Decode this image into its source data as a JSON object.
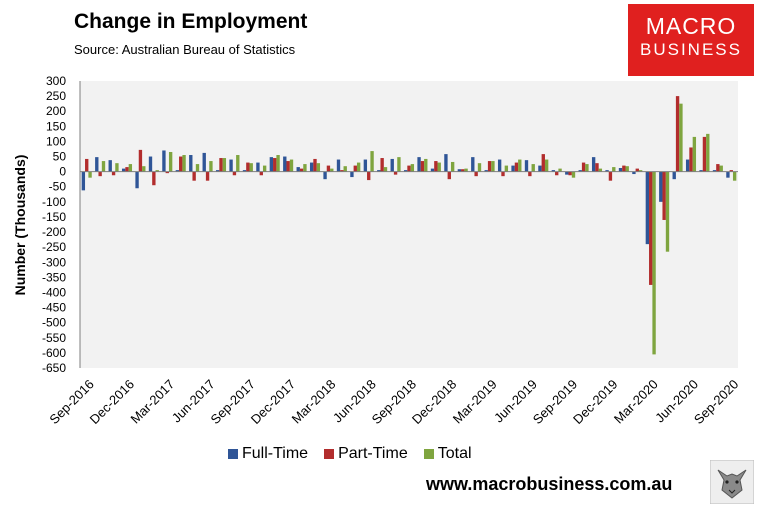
{
  "title": "Change in Employment",
  "source": "Source: Australian Bureau of Statistics",
  "logo": {
    "line1": "MACRO",
    "line2": "BUSINESS"
  },
  "website": "www.macrobusiness.com.au",
  "colors": {
    "full_time": "#2f5597",
    "part_time": "#b22d2d",
    "total": "#7fa53f",
    "plot_bg": "#f2f2f2",
    "brand": "#e0201f"
  },
  "chart_data": {
    "type": "bar",
    "title": "Change in Employment",
    "ylabel": "Number (Thousands)",
    "ylim": [
      -650,
      300
    ],
    "yticks": [
      300,
      250,
      200,
      150,
      100,
      50,
      0,
      -50,
      -100,
      -150,
      -200,
      -250,
      -300,
      -350,
      -400,
      -450,
      -500,
      -550,
      -600,
      -650
    ],
    "grid": false,
    "legend": "bottom",
    "x_tick_labels": [
      "Sep-2016",
      "Dec-2016",
      "Mar-2017",
      "Jun-2017",
      "Sep-2017",
      "Dec-2017",
      "Mar-2018",
      "Jun-2018",
      "Sep-2018",
      "Dec-2018",
      "Mar-2019",
      "Jun-2019",
      "Sep-2019",
      "Dec-2019",
      "Mar-2020",
      "Jun-2020",
      "Sep-2020"
    ],
    "categories": [
      "Sep-2016",
      "Oct-2016",
      "Nov-2016",
      "Dec-2016",
      "Jan-2017",
      "Feb-2017",
      "Mar-2017",
      "Apr-2017",
      "May-2017",
      "Jun-2017",
      "Jul-2017",
      "Aug-2017",
      "Sep-2017",
      "Oct-2017",
      "Nov-2017",
      "Dec-2017",
      "Jan-2018",
      "Feb-2018",
      "Mar-2018",
      "Apr-2018",
      "May-2018",
      "Jun-2018",
      "Jul-2018",
      "Aug-2018",
      "Sep-2018",
      "Oct-2018",
      "Nov-2018",
      "Dec-2018",
      "Jan-2019",
      "Feb-2019",
      "Mar-2019",
      "Apr-2019",
      "May-2019",
      "Jun-2019",
      "Jul-2019",
      "Aug-2019",
      "Sep-2019",
      "Oct-2019",
      "Nov-2019",
      "Dec-2019",
      "Jan-2020",
      "Feb-2020",
      "Mar-2020",
      "Apr-2020",
      "May-2020",
      "Jun-2020",
      "Jul-2020",
      "Aug-2020",
      "Sep-2020"
    ],
    "series": [
      {
        "name": "Full-Time",
        "values": [
          -62,
          48,
          38,
          10,
          -55,
          50,
          70,
          5,
          55,
          62,
          5,
          40,
          5,
          30,
          48,
          50,
          15,
          30,
          -25,
          40,
          -18,
          40,
          5,
          42,
          5,
          48,
          10,
          58,
          8,
          48,
          5,
          40,
          20,
          38,
          20,
          5,
          -10,
          5,
          48,
          5,
          12,
          -8,
          -240,
          -100,
          -25,
          40,
          5,
          5,
          -20
        ]
      },
      {
        "name": "Part-Time",
        "values": [
          42,
          -15,
          -12,
          15,
          72,
          -45,
          -5,
          50,
          -30,
          -30,
          45,
          -12,
          30,
          -12,
          45,
          35,
          10,
          42,
          20,
          5,
          20,
          -28,
          45,
          -10,
          20,
          35,
          35,
          -25,
          8,
          -15,
          35,
          -15,
          30,
          -15,
          58,
          -12,
          -12,
          30,
          28,
          -30,
          20,
          10,
          -375,
          -160,
          250,
          80,
          115,
          25,
          5
        ]
      },
      {
        "name": "Total",
        "values": [
          -20,
          35,
          28,
          25,
          18,
          5,
          65,
          55,
          25,
          35,
          45,
          55,
          28,
          20,
          55,
          40,
          25,
          28,
          10,
          18,
          30,
          68,
          15,
          48,
          25,
          42,
          30,
          32,
          10,
          28,
          35,
          20,
          40,
          25,
          40,
          10,
          -20,
          25,
          10,
          15,
          18,
          5,
          -605,
          -265,
          225,
          115,
          125,
          20,
          -30
        ]
      }
    ]
  }
}
